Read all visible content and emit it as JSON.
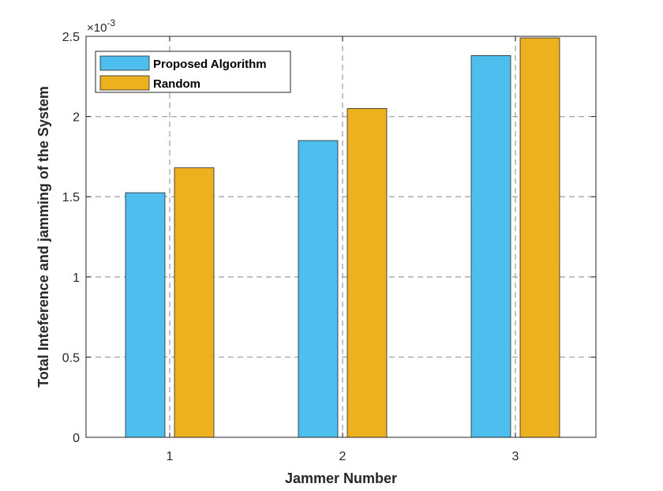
{
  "chart_data": {
    "type": "bar",
    "title": "",
    "xlabel": "Jammer Number",
    "ylabel": "Total Inteference and jamming of the System",
    "categories": [
      "1",
      "2",
      "3"
    ],
    "series": [
      {
        "name": "Proposed Algorithm",
        "color": "#4DBEEE",
        "values": [
          0.001525,
          0.00185,
          0.00238
        ]
      },
      {
        "name": "Random",
        "color": "#EDB120",
        "values": [
          0.00168,
          0.00205,
          0.00249
        ]
      }
    ],
    "ylim": [
      0,
      0.0025
    ],
    "yticks": [
      "0",
      "0.5",
      "1",
      "1.5",
      "2",
      "2.5"
    ],
    "y_exponent_base": "×10",
    "y_exponent_power": "-3",
    "grid": true,
    "legend_position": "top-left"
  }
}
